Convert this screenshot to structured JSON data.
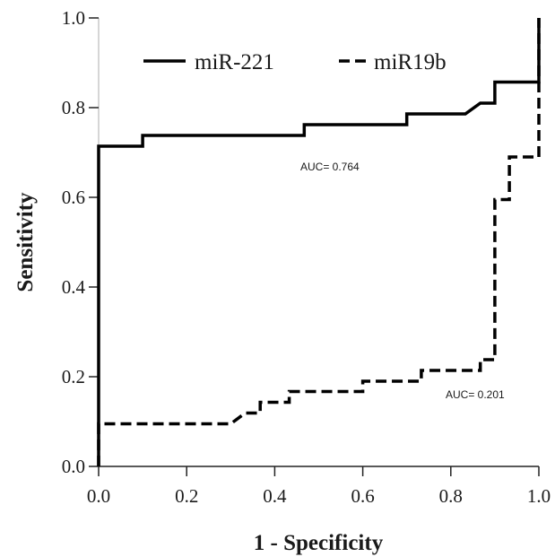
{
  "chart_data": {
    "type": "line",
    "xlabel": "1 - Specificity",
    "ylabel": "Sensitivity",
    "xlim": [
      0,
      1
    ],
    "ylim": [
      0,
      1
    ],
    "x_ticks": [
      "0.0",
      "0.2",
      "0.4",
      "0.6",
      "0.8",
      "1.0"
    ],
    "y_ticks": [
      "0.0",
      "0.2",
      "0.4",
      "0.6",
      "0.8",
      "1.0"
    ],
    "grid": false,
    "legend_position": "top",
    "series": [
      {
        "name": "miR-221",
        "style": "solid",
        "color": "#000000",
        "annotation": "AUC= 0.764",
        "points": [
          [
            0,
            0
          ],
          [
            0,
            0.714
          ],
          [
            0.1,
            0.714
          ],
          [
            0.1,
            0.738
          ],
          [
            0.467,
            0.738
          ],
          [
            0.467,
            0.762
          ],
          [
            0.7,
            0.762
          ],
          [
            0.7,
            0.786
          ],
          [
            0.833,
            0.786
          ],
          [
            0.867,
            0.81
          ],
          [
            0.9,
            0.81
          ],
          [
            0.9,
            0.857
          ],
          [
            1.0,
            0.857
          ],
          [
            1.0,
            1.0
          ]
        ]
      },
      {
        "name": "miR19b",
        "style": "dashed",
        "color": "#000000",
        "annotation": "AUC= 0.201",
        "points": [
          [
            0,
            0
          ],
          [
            0,
            0.095
          ],
          [
            0.3,
            0.095
          ],
          [
            0.333,
            0.119
          ],
          [
            0.367,
            0.119
          ],
          [
            0.367,
            0.143
          ],
          [
            0.433,
            0.143
          ],
          [
            0.433,
            0.167
          ],
          [
            0.6,
            0.167
          ],
          [
            0.6,
            0.19
          ],
          [
            0.733,
            0.19
          ],
          [
            0.733,
            0.214
          ],
          [
            0.867,
            0.214
          ],
          [
            0.867,
            0.238
          ],
          [
            0.9,
            0.238
          ],
          [
            0.9,
            0.595
          ],
          [
            0.933,
            0.595
          ],
          [
            0.933,
            0.69
          ],
          [
            1.0,
            0.69
          ],
          [
            1.0,
            1.0
          ]
        ]
      }
    ]
  }
}
